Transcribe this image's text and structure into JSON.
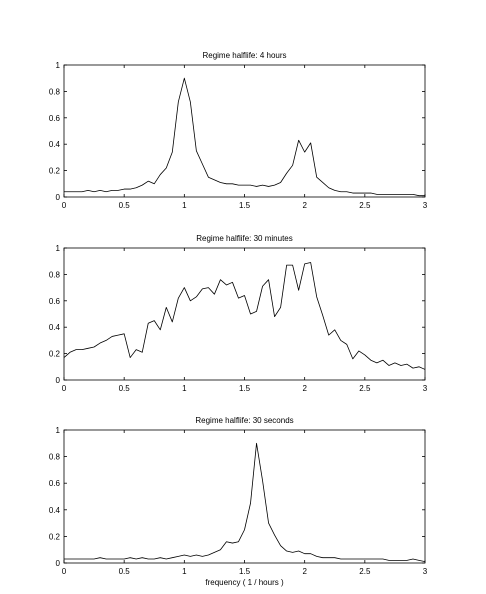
{
  "chart_data": [
    {
      "type": "line",
      "title": "Regime halflife: 4 hours",
      "xlabel": "",
      "ylabel": "",
      "xlim": [
        0,
        3
      ],
      "ylim": [
        0,
        1
      ],
      "xticks": [
        "0",
        "0.5",
        "1",
        "1.5",
        "2",
        "2.5",
        "3"
      ],
      "yticks": [
        "0",
        "0.2",
        "0.4",
        "0.6",
        "0.8",
        "1"
      ],
      "grid": false,
      "series": [
        {
          "x": [
            0.0,
            0.05,
            0.1,
            0.15,
            0.2,
            0.25,
            0.3,
            0.35,
            0.4,
            0.45,
            0.5,
            0.55,
            0.6,
            0.65,
            0.7,
            0.75,
            0.8,
            0.85,
            0.9,
            0.95,
            1.0,
            1.05,
            1.1,
            1.15,
            1.2,
            1.25,
            1.3,
            1.35,
            1.4,
            1.45,
            1.5,
            1.55,
            1.6,
            1.65,
            1.7,
            1.75,
            1.8,
            1.85,
            1.9,
            1.95,
            2.0,
            2.05,
            2.1,
            2.15,
            2.2,
            2.25,
            2.3,
            2.35,
            2.4,
            2.45,
            2.5,
            2.55,
            2.6,
            2.65,
            2.7,
            2.75,
            2.8,
            2.85,
            2.9,
            2.95,
            3.0
          ],
          "y": [
            0.04,
            0.04,
            0.04,
            0.04,
            0.05,
            0.04,
            0.05,
            0.04,
            0.05,
            0.05,
            0.06,
            0.06,
            0.07,
            0.09,
            0.12,
            0.1,
            0.17,
            0.22,
            0.34,
            0.72,
            0.9,
            0.72,
            0.35,
            0.25,
            0.15,
            0.13,
            0.11,
            0.1,
            0.1,
            0.09,
            0.09,
            0.09,
            0.08,
            0.09,
            0.08,
            0.09,
            0.11,
            0.18,
            0.24,
            0.43,
            0.34,
            0.41,
            0.15,
            0.11,
            0.07,
            0.05,
            0.04,
            0.04,
            0.03,
            0.03,
            0.03,
            0.03,
            0.02,
            0.02,
            0.02,
            0.02,
            0.02,
            0.02,
            0.02,
            0.01,
            0.01
          ]
        }
      ]
    },
    {
      "type": "line",
      "title": "Regime halflife: 30 minutes",
      "xlabel": "",
      "ylabel": "",
      "xlim": [
        0,
        3
      ],
      "ylim": [
        0,
        1
      ],
      "xticks": [
        "0",
        "0.5",
        "1",
        "1.5",
        "2",
        "2.5",
        "3"
      ],
      "yticks": [
        "0",
        "0.2",
        "0.4",
        "0.6",
        "0.8",
        "1"
      ],
      "grid": false,
      "series": [
        {
          "x": [
            0.0,
            0.05,
            0.1,
            0.15,
            0.2,
            0.25,
            0.3,
            0.35,
            0.4,
            0.45,
            0.5,
            0.55,
            0.6,
            0.65,
            0.7,
            0.75,
            0.8,
            0.85,
            0.9,
            0.95,
            1.0,
            1.05,
            1.1,
            1.15,
            1.2,
            1.25,
            1.3,
            1.35,
            1.4,
            1.45,
            1.5,
            1.55,
            1.6,
            1.65,
            1.7,
            1.75,
            1.8,
            1.85,
            1.9,
            1.95,
            2.0,
            2.05,
            2.1,
            2.15,
            2.2,
            2.25,
            2.3,
            2.35,
            2.4,
            2.45,
            2.5,
            2.55,
            2.6,
            2.65,
            2.7,
            2.75,
            2.8,
            2.85,
            2.9,
            2.95,
            3.0
          ],
          "y": [
            0.17,
            0.21,
            0.23,
            0.23,
            0.24,
            0.25,
            0.28,
            0.3,
            0.33,
            0.34,
            0.35,
            0.17,
            0.23,
            0.21,
            0.43,
            0.45,
            0.38,
            0.55,
            0.44,
            0.62,
            0.7,
            0.6,
            0.63,
            0.69,
            0.7,
            0.65,
            0.76,
            0.72,
            0.74,
            0.62,
            0.64,
            0.5,
            0.52,
            0.71,
            0.76,
            0.48,
            0.55,
            0.87,
            0.87,
            0.68,
            0.88,
            0.89,
            0.63,
            0.49,
            0.34,
            0.38,
            0.3,
            0.27,
            0.16,
            0.22,
            0.19,
            0.15,
            0.13,
            0.15,
            0.11,
            0.13,
            0.11,
            0.12,
            0.09,
            0.1,
            0.08
          ]
        }
      ]
    },
    {
      "type": "line",
      "title": "Regime halflife: 30 seconds",
      "xlabel": "frequency ( 1 / hours )",
      "ylabel": "",
      "xlim": [
        0,
        3
      ],
      "ylim": [
        0,
        1
      ],
      "xticks": [
        "0",
        "0.5",
        "1",
        "1.5",
        "2",
        "2.5",
        "3"
      ],
      "yticks": [
        "0",
        "0.2",
        "0.4",
        "0.6",
        "0.8",
        "1"
      ],
      "grid": false,
      "series": [
        {
          "x": [
            0.0,
            0.05,
            0.1,
            0.15,
            0.2,
            0.25,
            0.3,
            0.35,
            0.4,
            0.45,
            0.5,
            0.55,
            0.6,
            0.65,
            0.7,
            0.75,
            0.8,
            0.85,
            0.9,
            0.95,
            1.0,
            1.05,
            1.1,
            1.15,
            1.2,
            1.25,
            1.3,
            1.35,
            1.4,
            1.45,
            1.5,
            1.55,
            1.6,
            1.65,
            1.7,
            1.75,
            1.8,
            1.85,
            1.9,
            1.95,
            2.0,
            2.05,
            2.1,
            2.15,
            2.2,
            2.25,
            2.3,
            2.35,
            2.4,
            2.45,
            2.5,
            2.55,
            2.6,
            2.65,
            2.7,
            2.75,
            2.8,
            2.85,
            2.9,
            2.95,
            3.0
          ],
          "y": [
            0.03,
            0.03,
            0.03,
            0.03,
            0.03,
            0.03,
            0.04,
            0.03,
            0.03,
            0.03,
            0.03,
            0.04,
            0.03,
            0.04,
            0.03,
            0.03,
            0.04,
            0.03,
            0.04,
            0.05,
            0.06,
            0.05,
            0.06,
            0.05,
            0.06,
            0.08,
            0.1,
            0.16,
            0.15,
            0.16,
            0.25,
            0.45,
            0.9,
            0.62,
            0.3,
            0.21,
            0.13,
            0.09,
            0.08,
            0.09,
            0.07,
            0.07,
            0.05,
            0.04,
            0.04,
            0.04,
            0.03,
            0.03,
            0.03,
            0.03,
            0.03,
            0.03,
            0.03,
            0.03,
            0.02,
            0.02,
            0.02,
            0.02,
            0.03,
            0.02,
            0.01
          ]
        }
      ]
    }
  ]
}
